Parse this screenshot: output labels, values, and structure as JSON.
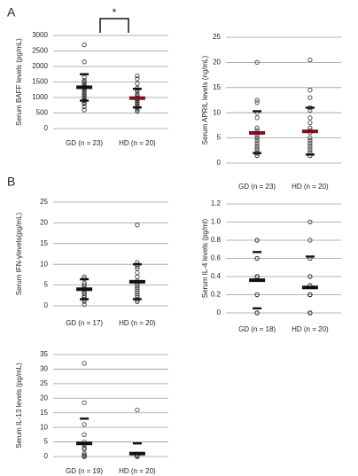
{
  "panel_labels": [
    "A",
    "B"
  ],
  "chart_data": [
    {
      "type": "dot",
      "y_label": "Serum BAFF levels (pg/mL)",
      "annotation": "*",
      "categories": [
        "GD (n = 23)",
        "HD (n = 20)"
      ],
      "ylim": [
        0,
        3000
      ],
      "yticks": [
        0,
        500,
        1000,
        1500,
        2000,
        2500,
        3000
      ],
      "grid": true,
      "groups": [
        {
          "points": [
            2700,
            2150,
            1650,
            1550,
            1500,
            1450,
            1400,
            1350,
            1300,
            1300,
            1250,
            1200,
            1150,
            1100,
            1050,
            1000,
            950,
            900,
            900,
            850,
            800,
            700,
            600
          ],
          "mean": 1330,
          "upper": 1750,
          "lower": 900,
          "mean_color": "#111111"
        },
        {
          "points": [
            1700,
            1600,
            1450,
            1300,
            1250,
            1200,
            1100,
            1050,
            1000,
            1000,
            950,
            950,
            900,
            850,
            800,
            750,
            700,
            650,
            600,
            550
          ],
          "mean": 980,
          "upper": 1280,
          "lower": 680,
          "mean_color": "#7a1020"
        }
      ]
    },
    {
      "type": "dot",
      "y_label": "Serum APRIL levels (ng/mL)",
      "categories": [
        "GD (n = 23)",
        "HD (n = 20)"
      ],
      "ylim": [
        0,
        25
      ],
      "yticks": [
        0,
        5,
        10,
        15,
        20,
        25
      ],
      "grid": true,
      "groups": [
        {
          "points": [
            20,
            12.5,
            12,
            10,
            9,
            7,
            6.5,
            6,
            5.5,
            5,
            4.5,
            4,
            3.5,
            3,
            3,
            2.5,
            2,
            2,
            2,
            2,
            1.5,
            1.5,
            1.5
          ],
          "mean": 6,
          "upper": 10.3,
          "lower": 2,
          "mean_color": "#7a1020"
        },
        {
          "points": [
            20.5,
            14.5,
            13,
            11,
            10.5,
            9,
            8,
            7,
            6.5,
            6,
            5,
            4.5,
            4,
            3.5,
            3,
            2.5,
            2,
            1.5,
            1.5,
            1.5
          ],
          "mean": 6.3,
          "upper": 11,
          "lower": 1.7,
          "mean_color": "#7a1020"
        }
      ]
    },
    {
      "type": "dot",
      "y_label": "Serum IFN-γlevels(pg/mL)",
      "categories": [
        "GD (n = 17)",
        "HD (n = 20)"
      ],
      "ylim": [
        0,
        25
      ],
      "yticks": [
        0,
        5,
        10,
        15,
        20,
        25
      ],
      "grid": true,
      "groups": [
        {
          "points": [
            7,
            6.5,
            5.5,
            5,
            4.5,
            4,
            4,
            3.5,
            3,
            3,
            2.5,
            2,
            2,
            1.5,
            1.5,
            1,
            0.3
          ],
          "mean": 4,
          "upper": 6.4,
          "lower": 1.6,
          "mean_color": "#111111"
        },
        {
          "points": [
            19.5,
            10.5,
            10,
            9.5,
            9,
            8,
            7,
            6,
            5.5,
            5,
            4.5,
            4,
            3.5,
            3,
            2.5,
            2,
            1.5,
            1.5,
            1,
            1
          ],
          "mean": 5.8,
          "upper": 10,
          "lower": 1.6,
          "mean_color": "#111111"
        }
      ]
    },
    {
      "type": "dot",
      "y_label": "Serum IL-4 levels (pg/ml)",
      "categories": [
        "GD (n = 18)",
        "HD (n = 20)"
      ],
      "ylim": [
        0,
        1.2
      ],
      "yticks": [
        0,
        0.2,
        0.4,
        0.6,
        0.8,
        {
          "value": 1,
          "label": "1.0"
        },
        1.2
      ],
      "grid": true,
      "groups": [
        {
          "points": [
            0.8,
            0.8,
            0.6,
            0.6,
            0.4,
            0.4,
            0.4,
            0.4,
            0.4,
            0.4,
            0.4,
            0.4,
            0.4,
            0.2,
            0.2,
            0,
            0,
            0
          ],
          "mean": 0.36,
          "upper": 0.67,
          "lower": 0.05,
          "mean_color": "#111111"
        },
        {
          "points": [
            1,
            0.8,
            0.6,
            0.6,
            0.4,
            0.4,
            0.3,
            0.3,
            0.3,
            0.2,
            0.2,
            0.2,
            0.2,
            0.2,
            0.2,
            0,
            0,
            0,
            0,
            0
          ],
          "mean": 0.28,
          "upper": 0.62,
          "mean_color": "#111111"
        }
      ]
    },
    {
      "type": "dot",
      "y_label": "Serum IL-13 levels (pg/mL)",
      "categories": [
        "GD (n = 19)",
        "HD (n = 20)"
      ],
      "ylim": [
        0,
        35
      ],
      "yticks": [
        0,
        5,
        10,
        15,
        20,
        25,
        30,
        35
      ],
      "grid": true,
      "groups": [
        {
          "points": [
            32,
            18.5,
            11,
            7.5,
            5,
            4,
            3,
            2.5,
            1,
            0.5,
            0.5,
            0,
            0,
            0,
            0,
            0,
            0,
            0,
            0
          ],
          "mean": 4.5,
          "upper": 13,
          "mean_color": "#111111"
        },
        {
          "points": [
            16,
            0.5,
            0.5,
            0,
            0,
            0,
            0,
            0,
            0,
            0,
            0,
            0,
            0,
            0,
            0,
            0,
            0,
            0,
            0,
            0
          ],
          "mean": 1,
          "upper": 4.5,
          "mean_color": "#111111"
        }
      ]
    }
  ]
}
